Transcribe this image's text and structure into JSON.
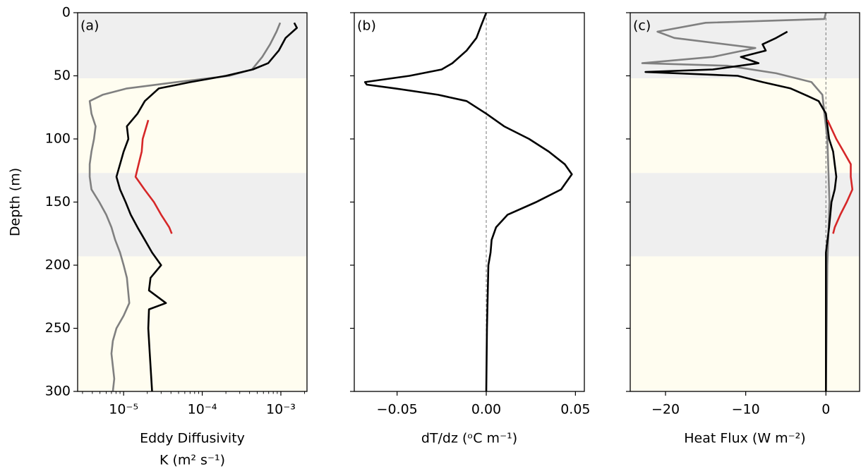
{
  "chart_data": [
    {
      "type": "line",
      "annotation": "(a)",
      "xlabel_lines": [
        "Eddy Diffusivity",
        "K (m² s⁻¹)"
      ],
      "ylabel": "Depth (m)",
      "xscale": "log",
      "xlim": [
        2.6e-06,
        0.00215
      ],
      "xticks": [
        {
          "value": 1e-05,
          "label": "10⁻⁵"
        },
        {
          "value": 0.0001,
          "label": "10⁻⁴"
        },
        {
          "value": 0.001,
          "label": "10⁻³"
        }
      ],
      "ylim": [
        0,
        300
      ],
      "y_inverted": true,
      "yticks": [
        0,
        50,
        100,
        150,
        200,
        250,
        300
      ],
      "ytick_labels": true,
      "zero_line": false,
      "shading": [
        {
          "range": [
            0,
            52
          ],
          "color": "#efefef"
        },
        {
          "range": [
            52,
            127
          ],
          "color": "#fffdf0"
        },
        {
          "range": [
            127,
            193
          ],
          "color": "#efefef"
        },
        {
          "range": [
            193,
            300
          ],
          "color": "#fffdf0"
        }
      ],
      "series": [
        {
          "color": "#808080",
          "depth": [
            8,
            15,
            25,
            35,
            45,
            50,
            55,
            60,
            65,
            70,
            80,
            90,
            100,
            110,
            120,
            130,
            140,
            150,
            160,
            170,
            180,
            190,
            200,
            210,
            230,
            240,
            250,
            260,
            270,
            280,
            290,
            300
          ],
          "values": [
            0.00098,
            0.00088,
            0.00073,
            0.00058,
            0.00043,
            0.00022,
            4.7e-05,
            1.1e-05,
            5.4e-06,
            3.7e-06,
            3.9e-06,
            4.4e-06,
            4.2e-06,
            3.9e-06,
            3.7e-06,
            3.7e-06,
            3.9e-06,
            4.9e-06,
            6e-06,
            7e-06,
            7.8e-06,
            9e-06,
            1e-05,
            1.1e-05,
            1.18e-05,
            1e-05,
            8.1e-06,
            7.3e-06,
            7e-06,
            7.3e-06,
            7.6e-06,
            7.3e-06
          ]
        },
        {
          "color": "#000000",
          "depth": [
            8,
            12,
            20,
            30,
            40,
            45,
            50,
            55,
            60,
            70,
            80,
            90,
            100,
            110,
            120,
            130,
            140,
            150,
            160,
            170,
            180,
            190,
            200,
            210,
            220,
            230,
            235,
            250,
            270,
            300
          ],
          "values": [
            0.00148,
            0.0016,
            0.00115,
            0.00094,
            0.00069,
            0.00044,
            0.0002,
            7.1e-05,
            2.8e-05,
            1.86e-05,
            1.5e-05,
            1.1e-05,
            1.15e-05,
            1e-05,
            9e-06,
            8.1e-06,
            9e-06,
            1.06e-05,
            1.23e-05,
            1.5e-05,
            1.86e-05,
            2.3e-05,
            3e-05,
            2.2e-05,
            2.1e-05,
            3.45e-05,
            2.1e-05,
            2.06e-05,
            2.15e-05,
            2.3e-05
          ]
        },
        {
          "color": "#d62728",
          "depth": [
            85,
            100,
            110,
            120,
            130,
            140,
            150,
            160,
            170,
            175
          ],
          "values": [
            2.06e-05,
            1.75e-05,
            1.7e-05,
            1.55e-05,
            1.42e-05,
            1.84e-05,
            2.43e-05,
            3e-05,
            3.8e-05,
            4.1e-05
          ]
        }
      ]
    },
    {
      "type": "line",
      "annotation": "(b)",
      "xlabel_lines": [
        "dT/dz (ᵒC m⁻¹)"
      ],
      "xscale": "linear",
      "xlim": [
        -0.074,
        0.055
      ],
      "xticks": [
        {
          "value": -0.05,
          "label": "−0.05"
        },
        {
          "value": 0,
          "label": "0.00"
        },
        0.05
      ],
      "ylim": [
        0,
        300
      ],
      "y_inverted": true,
      "yticks": [
        0,
        50,
        100,
        150,
        200,
        250,
        300
      ],
      "ytick_labels": false,
      "zero_line": true,
      "shading": [],
      "series": [
        {
          "color": "#000000",
          "depth": [
            0,
            10,
            20,
            30,
            40,
            45,
            50,
            55,
            57,
            60,
            65,
            70,
            80,
            90,
            100,
            110,
            120,
            128,
            140,
            150,
            160,
            170,
            180,
            190,
            200,
            250,
            300
          ],
          "values": [
            0,
            -0.0028,
            -0.0055,
            -0.011,
            -0.019,
            -0.025,
            -0.043,
            -0.068,
            -0.067,
            -0.051,
            -0.027,
            -0.011,
            0,
            0.01,
            0.024,
            0.035,
            0.044,
            0.048,
            0.042,
            0.028,
            0.012,
            0.0055,
            0.003,
            0.0024,
            0.0012,
            0.0004,
            0
          ]
        }
      ]
    },
    {
      "type": "line",
      "annotation": "(c)",
      "xlabel_lines": [
        "Heat Flux (W m⁻²)"
      ],
      "xscale": "linear",
      "xlim": [
        -24.4,
        4.2
      ],
      "xticks": [
        {
          "value": -20,
          "label": "−20"
        },
        {
          "value": -10,
          "label": "−10"
        },
        0
      ],
      "ylim": [
        0,
        300
      ],
      "y_inverted": true,
      "yticks": [
        0,
        50,
        100,
        150,
        200,
        250,
        300
      ],
      "ytick_labels": false,
      "zero_line": true,
      "shading": [
        {
          "range": [
            0,
            52
          ],
          "color": "#efefef"
        },
        {
          "range": [
            52,
            127
          ],
          "color": "#fffdf0"
        },
        {
          "range": [
            127,
            193
          ],
          "color": "#efefef"
        },
        {
          "range": [
            193,
            300
          ],
          "color": "#fffdf0"
        }
      ],
      "series": [
        {
          "color": "#808080",
          "depth": [
            0,
            5,
            8,
            15,
            20,
            28,
            35,
            40,
            42,
            48,
            55,
            65,
            80,
            100,
            150,
            200,
            300
          ],
          "values": [
            0,
            -0.2,
            -15,
            -21,
            -18.9,
            -8.8,
            -14.1,
            -22.9,
            -12.3,
            -6.2,
            -1.8,
            -0.44,
            -0.18,
            0.18,
            0.44,
            0.18,
            0
          ]
        },
        {
          "color": "#000000",
          "depth": [
            15,
            20,
            25,
            30,
            35,
            40,
            45,
            47,
            50,
            55,
            60,
            65,
            70,
            80,
            90,
            100,
            110,
            130,
            140,
            150,
            170,
            190,
            300
          ],
          "values": [
            -4.8,
            -6.2,
            -7.9,
            -7.5,
            -10.6,
            -8.4,
            -14.1,
            -22.5,
            -11,
            -7.9,
            -4.4,
            -2.6,
            -0.9,
            0,
            0.2,
            0.4,
            0.9,
            1.3,
            1.1,
            0.7,
            0.4,
            0,
            0
          ]
        },
        {
          "color": "#d62728",
          "depth": [
            85,
            100,
            110,
            120,
            130,
            140,
            150,
            160,
            170,
            175
          ],
          "values": [
            0.2,
            1.3,
            2.2,
            3.1,
            3.1,
            3.3,
            2.6,
            1.8,
            1.1,
            0.9
          ]
        }
      ]
    }
  ]
}
